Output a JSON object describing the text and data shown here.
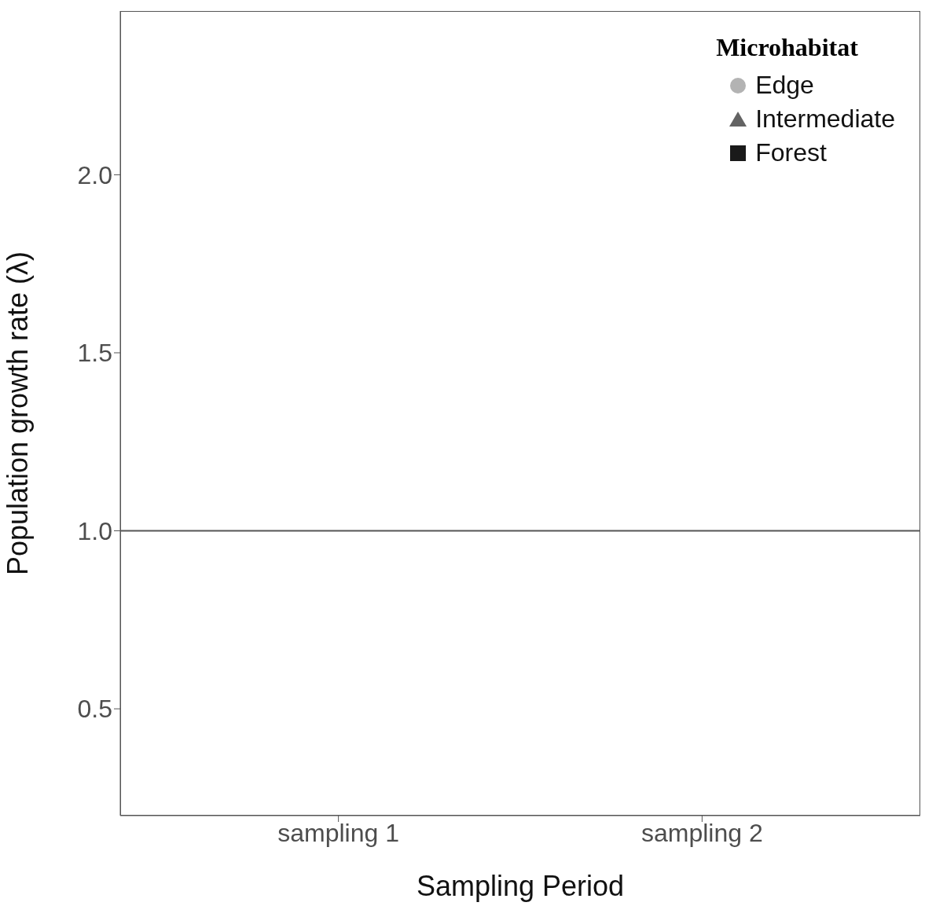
{
  "chart_data": {
    "type": "scatter",
    "xlabel": "Sampling Period",
    "ylabel": "Population growth rate (λ)",
    "legend_title": "Microhabitat",
    "categories": [
      "sampling 1",
      "sampling 2"
    ],
    "series": [
      {
        "name": "Edge",
        "color": "#b3b3b3",
        "marker": "circle",
        "values": [
          null,
          null
        ]
      },
      {
        "name": "Intermediate",
        "color": "#636363",
        "marker": "triangle",
        "values": [
          null,
          null
        ]
      },
      {
        "name": "Forest",
        "color": "#1a1a1a",
        "marker": "square",
        "values": [
          null,
          null
        ]
      }
    ],
    "ylim": [
      0.2,
      2.46
    ],
    "yticks": [
      {
        "value": 0.5,
        "label": "0.5"
      },
      {
        "value": 1,
        "label": "1.0"
      },
      {
        "value": 1.5,
        "label": "1.5"
      },
      {
        "value": 2,
        "label": "2.0"
      }
    ],
    "ref_lines": [
      {
        "axis": "y",
        "value": 1.0,
        "color": "#555555"
      }
    ],
    "legend": "top right",
    "grid": false
  }
}
